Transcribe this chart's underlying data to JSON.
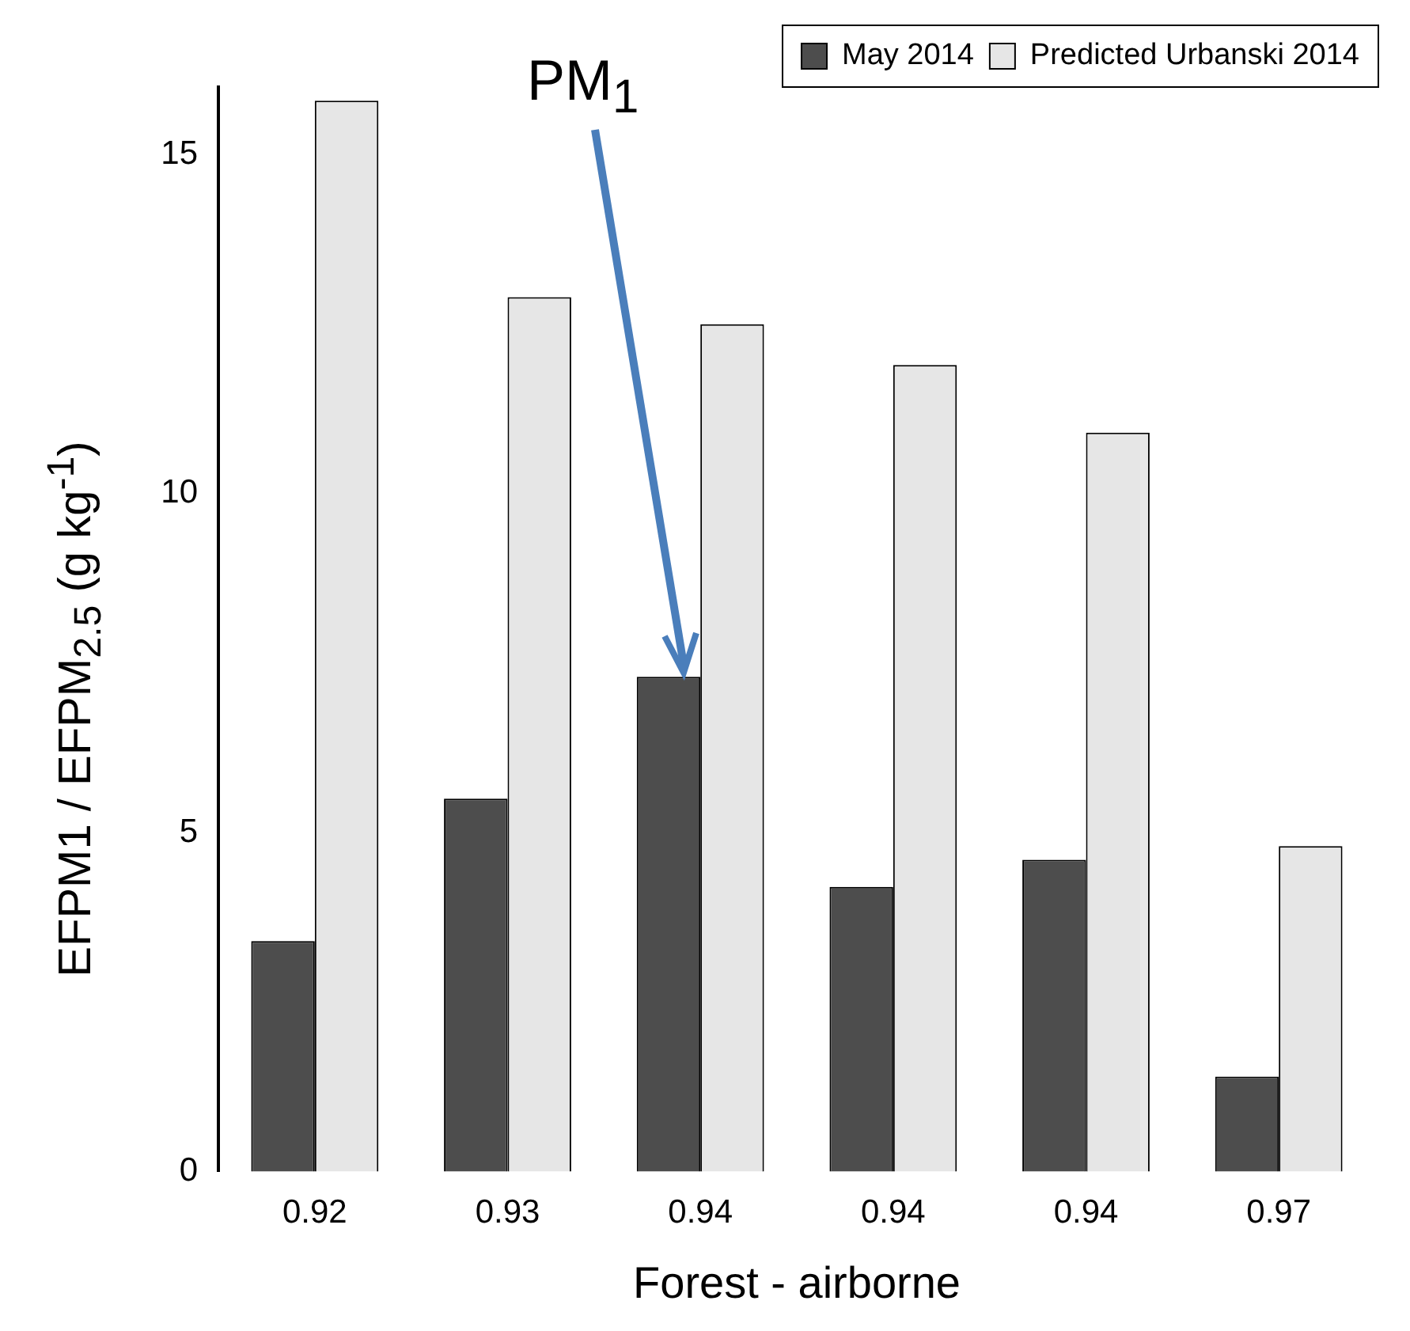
{
  "chart_data": {
    "type": "bar",
    "xlabel": "Forest - airborne",
    "ylabel": "EFPM1 / EFPM$_{2.5}$  (g kg$^{-1}$)",
    "categories": [
      "0.92",
      "0.93",
      "0.94",
      "0.94",
      "0.94",
      "0.97"
    ],
    "series": [
      {
        "name": "May 2014",
        "color": "#4d4d4d",
        "values": [
          3.4,
          5.5,
          7.3,
          4.2,
          4.6,
          1.4
        ]
      },
      {
        "name": "Predicted Urbanski 2014",
        "color": "#e6e6e6",
        "values": [
          15.8,
          12.9,
          12.5,
          11.9,
          10.9,
          4.8
        ]
      }
    ],
    "ylim": [
      0,
      16
    ],
    "yticks": [
      0,
      5,
      10,
      15
    ],
    "grid": false,
    "legend": "top right",
    "annotations": [
      "PM$_{1}$"
    ]
  }
}
